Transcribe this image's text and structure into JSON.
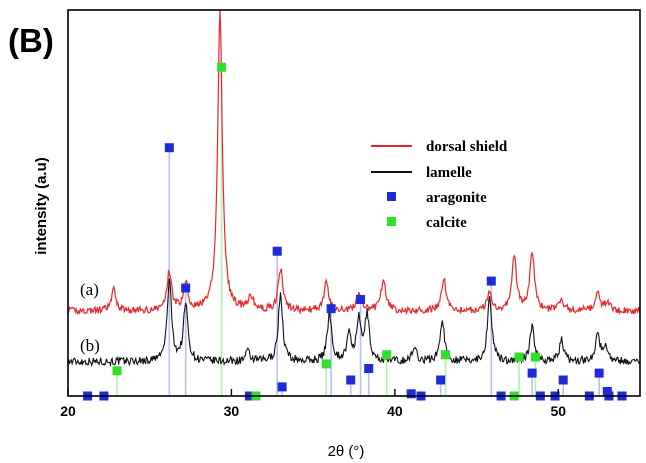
{
  "chart_data": {
    "panel_label": "(B)",
    "type": "line",
    "xlabel": "2θ (°)",
    "ylabel": "intensity (a.u)",
    "xlim": [
      20,
      55
    ],
    "x_ticks": [
      "20",
      "30",
      "40",
      "50"
    ],
    "x_tick_values": [
      20,
      30,
      40,
      50
    ],
    "y_ticks": "none",
    "grid": false,
    "legend_position": "center-right",
    "colors": {
      "dorsal_shield": "#e8262b",
      "lamelle": "#111111",
      "aragonite": "#1f2bd8",
      "calcite": "#2fe02a",
      "aragonite_ref_line": "#b9bff0",
      "calcite_ref_line": "#b6f0b0"
    },
    "series": [
      {
        "name": "dorsal shield",
        "trace_label": "(a)",
        "baseline": 0.0,
        "peaks": [
          [
            22.8,
            0.09
          ],
          [
            26.2,
            0.17
          ],
          [
            27.2,
            0.12
          ],
          [
            29.3,
            1.3
          ],
          [
            31.2,
            0.06
          ],
          [
            33.0,
            0.18
          ],
          [
            35.8,
            0.12
          ],
          [
            37.8,
            0.08
          ],
          [
            39.3,
            0.14
          ],
          [
            43.0,
            0.14
          ],
          [
            45.8,
            0.08
          ],
          [
            47.3,
            0.24
          ],
          [
            48.4,
            0.25
          ],
          [
            50.2,
            0.05
          ],
          [
            52.4,
            0.08
          ],
          [
            53.0,
            0.04
          ]
        ]
      },
      {
        "name": "lamelle",
        "trace_label": "(b)",
        "baseline": -0.22,
        "peaks": [
          [
            26.2,
            0.35
          ],
          [
            27.2,
            0.25
          ],
          [
            31.0,
            0.04
          ],
          [
            33.0,
            0.29
          ],
          [
            36.0,
            0.21
          ],
          [
            37.2,
            0.11
          ],
          [
            37.8,
            0.17
          ],
          [
            38.3,
            0.2
          ],
          [
            41.2,
            0.06
          ],
          [
            42.9,
            0.18
          ],
          [
            45.8,
            0.28
          ],
          [
            48.4,
            0.15
          ],
          [
            50.2,
            0.09
          ],
          [
            52.4,
            0.12
          ],
          [
            52.9,
            0.07
          ]
        ]
      }
    ],
    "reference_markers": {
      "aragonite": {
        "name": "aragonite",
        "points": [
          [
            26.2,
            0.71
          ],
          [
            27.2,
            0.1
          ],
          [
            32.8,
            0.26
          ],
          [
            33.1,
            -0.33
          ],
          [
            36.1,
            0.01
          ],
          [
            37.3,
            -0.3
          ],
          [
            37.9,
            0.05
          ],
          [
            38.4,
            -0.25
          ],
          [
            45.9,
            0.13
          ],
          [
            48.4,
            -0.27
          ],
          [
            50.3,
            -0.3
          ],
          [
            52.5,
            -0.27
          ],
          [
            53.0,
            -0.35
          ],
          [
            21.2,
            -0.47
          ],
          [
            22.2,
            -0.49
          ],
          [
            31.1,
            -0.42
          ],
          [
            41.0,
            -0.36
          ],
          [
            41.6,
            -0.48
          ],
          [
            42.8,
            -0.3
          ],
          [
            46.5,
            -0.48
          ],
          [
            48.9,
            -0.48
          ],
          [
            49.8,
            -0.46
          ],
          [
            51.9,
            -0.47
          ],
          [
            53.9,
            -0.48
          ],
          [
            53.1,
            -0.37
          ]
        ]
      },
      "calcite": {
        "name": "calcite",
        "points": [
          [
            29.4,
            1.06
          ],
          [
            23.0,
            -0.26
          ],
          [
            31.5,
            -0.43
          ],
          [
            35.8,
            -0.23
          ],
          [
            39.5,
            -0.19
          ],
          [
            43.1,
            -0.19
          ],
          [
            47.3,
            -0.39
          ],
          [
            47.6,
            -0.2
          ],
          [
            48.6,
            -0.2
          ]
        ]
      }
    }
  }
}
